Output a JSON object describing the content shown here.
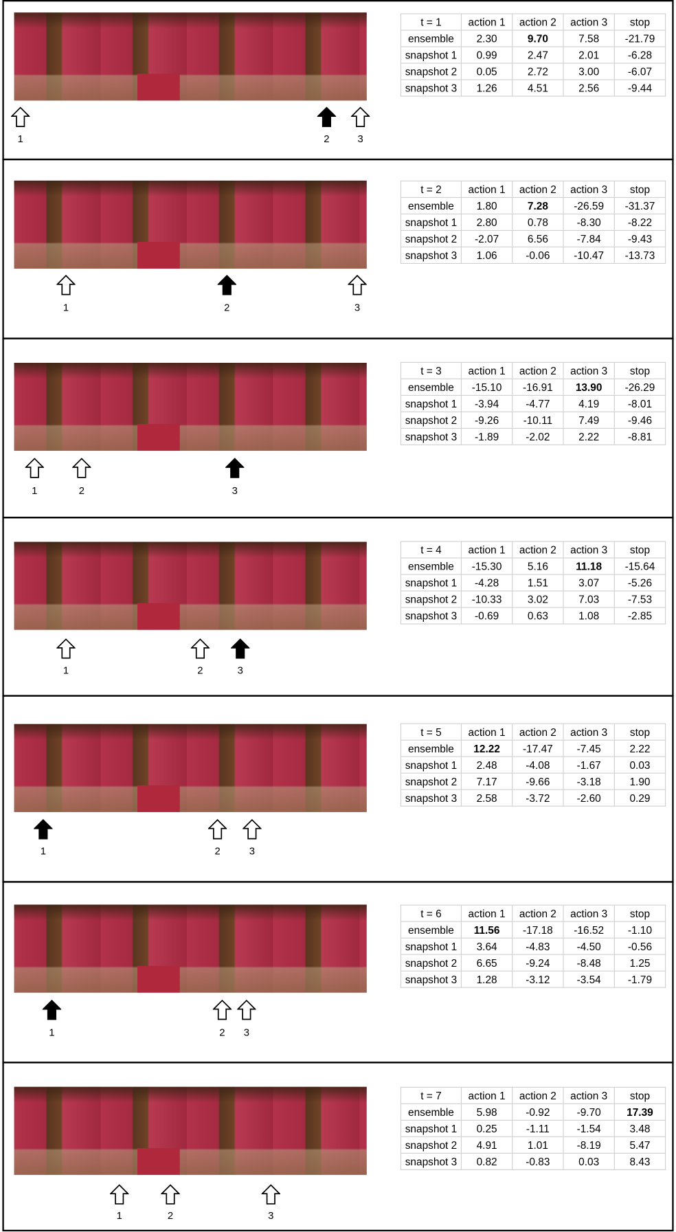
{
  "panels": [
    {
      "table": {
        "header": [
          "t = 1",
          "action 1",
          "action 2",
          "action 3",
          "stop"
        ],
        "rows": [
          [
            "ensemble",
            "2.30",
            "9.70",
            "7.58",
            "-21.79"
          ],
          [
            "snapshot 1",
            "0.99",
            "2.47",
            "2.01",
            "-6.28"
          ],
          [
            "snapshot 2",
            "0.05",
            "2.72",
            "3.00",
            "-6.07"
          ],
          [
            "snapshot 3",
            "1.26",
            "4.51",
            "2.56",
            "-9.44"
          ]
        ],
        "bold_cell": [
          0,
          2
        ]
      },
      "arrows": [
        {
          "label": "1",
          "filled": false
        },
        {
          "label": "2",
          "filled": true
        },
        {
          "label": "3",
          "filled": false
        }
      ]
    },
    {
      "table": {
        "header": [
          "t = 2",
          "action 1",
          "action 2",
          "action 3",
          "stop"
        ],
        "rows": [
          [
            "ensemble",
            "1.80",
            "7.28",
            "-26.59",
            "-31.37"
          ],
          [
            "snapshot 1",
            "2.80",
            "0.78",
            "-8.30",
            "-8.22"
          ],
          [
            "snapshot 2",
            "-2.07",
            "6.56",
            "-7.84",
            "-9.43"
          ],
          [
            "snapshot 3",
            "1.06",
            "-0.06",
            "-10.47",
            "-13.73"
          ]
        ],
        "bold_cell": [
          0,
          2
        ]
      },
      "arrows": [
        {
          "label": "1",
          "filled": false
        },
        {
          "label": "2",
          "filled": true
        },
        {
          "label": "3",
          "filled": false
        }
      ]
    },
    {
      "table": {
        "header": [
          "t = 3",
          "action 1",
          "action 2",
          "action 3",
          "stop"
        ],
        "rows": [
          [
            "ensemble",
            "-15.10",
            "-16.91",
            "13.90",
            "-26.29"
          ],
          [
            "snapshot 1",
            "-3.94",
            "-4.77",
            "4.19",
            "-8.01"
          ],
          [
            "snapshot 2",
            "-9.26",
            "-10.11",
            "7.49",
            "-9.46"
          ],
          [
            "snapshot 3",
            "-1.89",
            "-2.02",
            "2.22",
            "-8.81"
          ]
        ],
        "bold_cell": [
          0,
          3
        ]
      },
      "arrows": [
        {
          "label": "1",
          "filled": false
        },
        {
          "label": "2",
          "filled": false
        },
        {
          "label": "3",
          "filled": true
        }
      ]
    },
    {
      "table": {
        "header": [
          "t = 4",
          "action 1",
          "action 2",
          "action 3",
          "stop"
        ],
        "rows": [
          [
            "ensemble",
            "-15.30",
            "5.16",
            "11.18",
            "-15.64"
          ],
          [
            "snapshot 1",
            "-4.28",
            "1.51",
            "3.07",
            "-5.26"
          ],
          [
            "snapshot 2",
            "-10.33",
            "3.02",
            "7.03",
            "-7.53"
          ],
          [
            "snapshot 3",
            "-0.69",
            "0.63",
            "1.08",
            "-2.85"
          ]
        ],
        "bold_cell": [
          0,
          3
        ]
      },
      "arrows": [
        {
          "label": "1",
          "filled": false
        },
        {
          "label": "2",
          "filled": false
        },
        {
          "label": "3",
          "filled": true
        }
      ]
    },
    {
      "table": {
        "header": [
          "t = 5",
          "action 1",
          "action 2",
          "action 3",
          "stop"
        ],
        "rows": [
          [
            "ensemble",
            "12.22",
            "-17.47",
            "-7.45",
            "2.22"
          ],
          [
            "snapshot 1",
            "2.48",
            "-4.08",
            "-1.67",
            "0.03"
          ],
          [
            "snapshot 2",
            "7.17",
            "-9.66",
            "-3.18",
            "1.90"
          ],
          [
            "snapshot 3",
            "2.58",
            "-3.72",
            "-2.60",
            "0.29"
          ]
        ],
        "bold_cell": [
          0,
          1
        ]
      },
      "arrows": [
        {
          "label": "1",
          "filled": true
        },
        {
          "label": "2",
          "filled": false
        },
        {
          "label": "3",
          "filled": false
        }
      ]
    },
    {
      "table": {
        "header": [
          "t = 6",
          "action 1",
          "action 2",
          "action 3",
          "stop"
        ],
        "rows": [
          [
            "ensemble",
            "11.56",
            "-17.18",
            "-16.52",
            "-1.10"
          ],
          [
            "snapshot 1",
            "3.64",
            "-4.83",
            "-4.50",
            "-0.56"
          ],
          [
            "snapshot 2",
            "6.65",
            "-9.24",
            "-8.48",
            "1.25"
          ],
          [
            "snapshot 3",
            "1.28",
            "-3.12",
            "-3.54",
            "-1.79"
          ]
        ],
        "bold_cell": [
          0,
          1
        ]
      },
      "arrows": [
        {
          "label": "1",
          "filled": true
        },
        {
          "label": "2",
          "filled": false
        },
        {
          "label": "3",
          "filled": false
        }
      ]
    },
    {
      "table": {
        "header": [
          "t = 7",
          "action 1",
          "action 2",
          "action 3",
          "stop"
        ],
        "rows": [
          [
            "ensemble",
            "5.98",
            "-0.92",
            "-9.70",
            "17.39"
          ],
          [
            "snapshot 1",
            "0.25",
            "-1.11",
            "-1.54",
            "3.48"
          ],
          [
            "snapshot 2",
            "4.91",
            "1.01",
            "-8.19",
            "5.47"
          ],
          [
            "snapshot 3",
            "0.82",
            "-0.83",
            "0.03",
            "8.43"
          ]
        ],
        "bold_cell": [
          0,
          4
        ]
      },
      "arrows": [
        {
          "label": "1",
          "filled": false
        },
        {
          "label": "2",
          "filled": false
        },
        {
          "label": "3",
          "filled": false
        }
      ]
    }
  ]
}
